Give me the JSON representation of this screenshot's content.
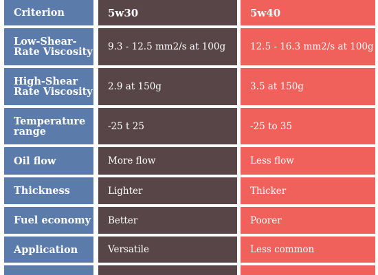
{
  "colors": {
    "criterion_bg": "#5b7bab",
    "col_5w30_bg": "#584547",
    "col_5w40_bg": "#ef615a",
    "text": "#ffffff"
  },
  "header": {
    "criterion": "Criterion",
    "col_a": "5w30",
    "col_b": "5w40"
  },
  "rows": [
    {
      "criterion": "Low-Shear-Rate Viscosity",
      "a": "9.3 - 12.5 mm2/s at 100g",
      "b": "12.5 - 16.3 mm2/s at 100g"
    },
    {
      "criterion": "High-Shear Rate Viscosity",
      "a": "2.9 at 150g",
      "b": "3.5 at 150g"
    },
    {
      "criterion": "Temperature range",
      "a": "-25 t 25",
      "b": "-25 to 35"
    },
    {
      "criterion": "Oil flow",
      "a": "More flow",
      "b": "Less flow"
    },
    {
      "criterion": "Thickness",
      "a": "Lighter",
      "b": "Thicker"
    },
    {
      "criterion": "Fuel economy",
      "a": "Better",
      "b": "Poorer"
    },
    {
      "criterion": "Application",
      "a": "Versatile",
      "b": "Less common"
    }
  ]
}
